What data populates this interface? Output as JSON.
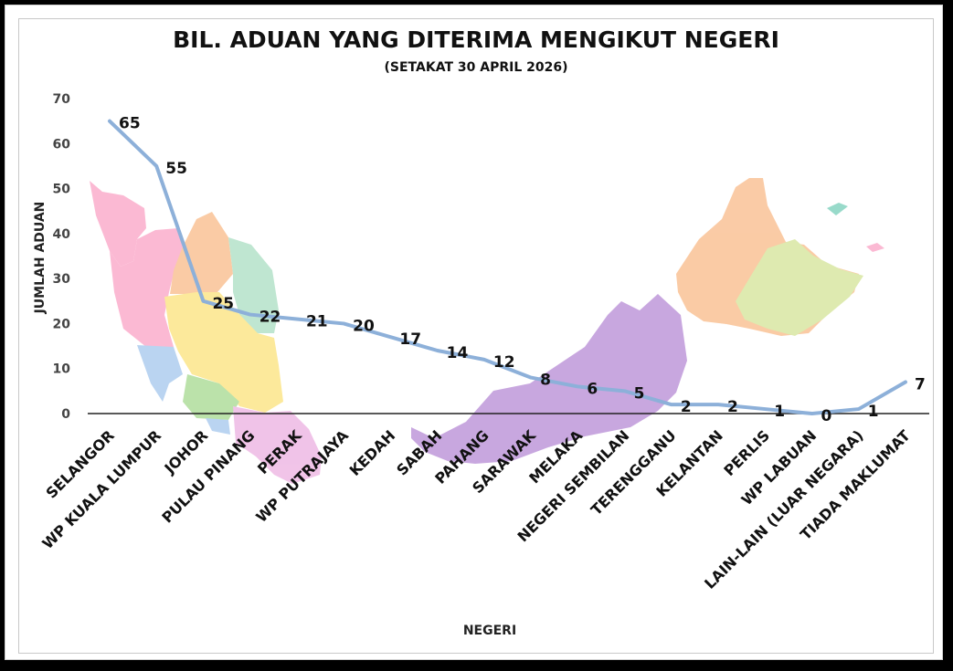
{
  "chart_data": {
    "type": "line",
    "title": "BIL. ADUAN YANG DITERIMA MENGIKUT NEGERI",
    "subtitle": "(SETAKAT 30 APRIL 2026)",
    "xlabel": "NEGERI",
    "ylabel": "JUMLAH ADUAN",
    "ylim": [
      0,
      70
    ],
    "yticks": [
      0,
      10,
      20,
      30,
      40,
      50,
      60,
      70
    ],
    "grid": false,
    "legend": "none",
    "line_color": "#8DB0D9",
    "categories": [
      "SELANGOR",
      "WP KUALA LUMPUR",
      "JOHOR",
      "PULAU PINANG",
      "PERAK",
      "WP PUTRAJAYA",
      "KEDAH",
      "SABAH",
      "PAHANG",
      "SARAWAK",
      "MELAKA",
      "NEGERI SEMBILAN",
      "TERENGGANU",
      "KELANTAN",
      "PERLIS",
      "WP LABUAN",
      "LAIN-LAIN (LUAR NEGARA)",
      "TIADA MAKLUMAT"
    ],
    "values": [
      65,
      55,
      25,
      22,
      21,
      20,
      17,
      14,
      12,
      8,
      6,
      5,
      2,
      2,
      1,
      0,
      1,
      7
    ],
    "data_labels": [
      "65",
      "55",
      "25",
      "22",
      "21",
      "20",
      "17",
      "14",
      "12",
      "8",
      "6",
      "5",
      "2",
      "2",
      "1",
      "0",
      "1",
      "7"
    ],
    "background_image": "malaysia-map"
  }
}
